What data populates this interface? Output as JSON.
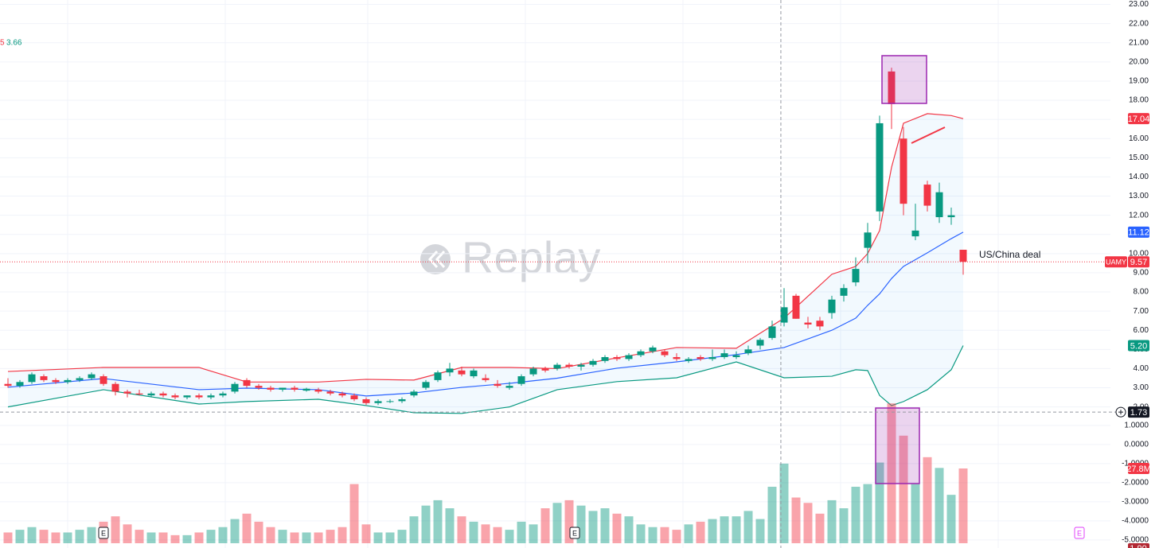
{
  "chart_data": {
    "type": "candlestick",
    "symbol": "UAMY",
    "legend_values": [
      "5",
      "3.66"
    ],
    "watermark": "Replay",
    "annotation": "US/China deal",
    "event_markers": [
      "E",
      "E",
      "E"
    ],
    "bottom_tag": "1.90",
    "up_color": "#089981",
    "down_color": "#f23645",
    "grid": true,
    "open": [
      3.2,
      3.1,
      3.3,
      3.6,
      3.4,
      3.3,
      3.4,
      3.5,
      3.6,
      3.2,
      2.8,
      2.7,
      2.6,
      2.7,
      2.6,
      2.5,
      2.6,
      2.5,
      2.6,
      2.8,
      3.4,
      3.1,
      3.0,
      2.9,
      3.0,
      2.85,
      2.9,
      2.8,
      2.7,
      2.6,
      2.4,
      2.2,
      2.3,
      2.3,
      2.6,
      3.0,
      3.4,
      3.8,
      3.9,
      3.6,
      3.5,
      3.2,
      3.0,
      3.2,
      3.7,
      4.0,
      4.0,
      4.2,
      4.1,
      4.2,
      4.4,
      4.6,
      4.5,
      4.7,
      4.9,
      4.9,
      4.6,
      4.4,
      4.6,
      4.5,
      4.6,
      4.6,
      4.8,
      5.2,
      5.6,
      6.4,
      7.8,
      6.4,
      6.5,
      6.9,
      7.8,
      8.5,
      10.3,
      12.2,
      19.5,
      16.0,
      10.9,
      13.6,
      11.9,
      11.9,
      10.2
    ],
    "high": [
      3.5,
      3.4,
      3.8,
      3.7,
      3.5,
      3.5,
      3.6,
      3.8,
      3.7,
      3.3,
      2.9,
      2.9,
      2.8,
      2.8,
      2.7,
      2.6,
      2.7,
      2.7,
      2.8,
      3.3,
      3.5,
      3.2,
      3.1,
      3.0,
      3.1,
      3.0,
      3.0,
      2.9,
      2.8,
      2.7,
      2.5,
      2.4,
      2.4,
      2.5,
      2.9,
      3.4,
      3.9,
      4.3,
      4.1,
      4.0,
      3.7,
      3.4,
      3.3,
      3.7,
      4.1,
      4.1,
      4.3,
      4.3,
      4.3,
      4.5,
      4.7,
      4.7,
      4.8,
      5.0,
      5.2,
      5.0,
      4.8,
      4.6,
      4.7,
      5.0,
      5.0,
      4.9,
      5.2,
      5.6,
      6.5,
      8.2,
      7.9,
      6.7,
      6.7,
      7.8,
      8.4,
      9.8,
      11.6,
      17.2,
      19.7,
      16.6,
      12.6,
      13.8,
      13.7,
      12.4,
      10.2
    ],
    "low": [
      3.0,
      3.0,
      3.2,
      3.3,
      3.2,
      3.2,
      3.3,
      3.4,
      3.1,
      2.6,
      2.5,
      2.6,
      2.5,
      2.5,
      2.4,
      2.4,
      2.4,
      2.4,
      2.5,
      2.7,
      3.0,
      2.9,
      2.8,
      2.8,
      2.8,
      2.8,
      2.7,
      2.6,
      2.5,
      2.3,
      2.1,
      2.1,
      2.2,
      2.2,
      2.5,
      2.9,
      3.3,
      3.6,
      3.6,
      3.5,
      3.3,
      3.0,
      2.9,
      3.1,
      3.6,
      3.8,
      3.9,
      4.0,
      3.9,
      4.1,
      4.3,
      4.4,
      4.4,
      4.6,
      4.8,
      4.6,
      4.4,
      4.3,
      4.4,
      4.4,
      4.5,
      4.5,
      4.7,
      5.0,
      5.5,
      6.2,
      6.6,
      6.1,
      6.0,
      6.6,
      7.5,
      8.3,
      9.5,
      11.7,
      16.5,
      12.0,
      10.7,
      12.2,
      11.6,
      11.5,
      8.9
    ],
    "close": [
      3.1,
      3.3,
      3.7,
      3.4,
      3.3,
      3.4,
      3.5,
      3.7,
      3.2,
      2.8,
      2.7,
      2.65,
      2.7,
      2.6,
      2.5,
      2.6,
      2.5,
      2.6,
      2.7,
      3.2,
      3.1,
      3.0,
      2.9,
      3.0,
      2.9,
      2.95,
      2.8,
      2.7,
      2.6,
      2.4,
      2.2,
      2.3,
      2.3,
      2.4,
      2.8,
      3.3,
      3.8,
      4.0,
      3.7,
      3.9,
      3.4,
      3.1,
      3.1,
      3.6,
      4.0,
      3.9,
      4.2,
      4.1,
      4.2,
      4.4,
      4.6,
      4.5,
      4.7,
      4.9,
      5.1,
      4.7,
      4.5,
      4.5,
      4.5,
      4.6,
      4.8,
      4.7,
      5.0,
      5.5,
      6.2,
      7.2,
      6.6,
      6.3,
      6.2,
      7.6,
      8.2,
      9.2,
      11.1,
      16.8,
      17.8,
      12.6,
      11.2,
      12.5,
      13.2,
      12.0,
      9.57
    ],
    "volume": [
      4000000,
      5000000,
      6000000,
      5000000,
      4000000,
      4000000,
      5000000,
      6000000,
      8000000,
      10000000,
      7000000,
      5000000,
      4000000,
      4000000,
      3000000,
      3000000,
      4000000,
      5000000,
      6000000,
      9000000,
      11000000,
      8000000,
      6000000,
      5000000,
      4000000,
      4000000,
      4000000,
      5000000,
      6000000,
      22000000,
      7000000,
      4000000,
      4000000,
      5000000,
      10000000,
      14000000,
      16000000,
      13000000,
      10000000,
      8000000,
      7000000,
      6000000,
      5000000,
      8000000,
      7000000,
      13000000,
      15000000,
      16000000,
      14000000,
      12000000,
      13000000,
      11000000,
      10000000,
      7000000,
      6000000,
      6000000,
      5000000,
      7000000,
      8000000,
      9000000,
      10000000,
      10000000,
      12000000,
      9000000,
      21000000,
      29600000,
      17000000,
      15000000,
      11000000,
      16000000,
      13000000,
      21000000,
      22000000,
      30000000,
      52000000,
      40000000,
      22000000,
      32000000,
      28000000,
      18000000,
      27800000
    ],
    "volume_value_label": "27.8M",
    "volume_lim": [
      0,
      202000000
    ],
    "bands": {
      "x": [
        0,
        8,
        16,
        20,
        26,
        30,
        34,
        38,
        42,
        46,
        51,
        56,
        61,
        65,
        69,
        71,
        72,
        73,
        74,
        75,
        77,
        79,
        80
      ],
      "upper": [
        3.85,
        4.06,
        4.06,
        3.3,
        3.3,
        3.44,
        3.4,
        4.06,
        4.06,
        4.0,
        4.56,
        5.1,
        5.06,
        6.63,
        8.92,
        9.33,
        10.0,
        11.2,
        14.5,
        16.8,
        17.3,
        17.2,
        17.04
      ],
      "middle": [
        3.03,
        3.48,
        2.9,
        2.98,
        2.9,
        2.57,
        2.73,
        3.02,
        3.23,
        3.5,
        4.02,
        4.35,
        4.73,
        5.1,
        6.0,
        6.63,
        7.3,
        7.9,
        8.7,
        9.33,
        10.04,
        10.78,
        11.12
      ],
      "lower": [
        2.0,
        2.9,
        2.15,
        2.28,
        2.4,
        2.07,
        1.7,
        1.66,
        2.0,
        2.9,
        3.32,
        3.52,
        4.35,
        3.52,
        3.6,
        3.94,
        3.9,
        2.6,
        2.07,
        2.28,
        2.9,
        3.94,
        5.2
      ],
      "lower_value_label": "5.20",
      "upper_color": "#f23645",
      "middle_color": "#2962ff",
      "lower_color": "#089981"
    },
    "crosshair": {
      "x": 64.73,
      "y": 1.73
    },
    "ylim": [
      -5.36,
      23.23
    ],
    "yticks": [
      {
        "value": 2,
        "label": "2.00"
      },
      {
        "value": 3,
        "label": "3.00"
      },
      {
        "value": 4,
        "label": "4.00"
      },
      {
        "value": 5,
        "label": "5.00"
      },
      {
        "value": 6,
        "label": "6.00"
      },
      {
        "value": 7,
        "label": "7.00"
      },
      {
        "value": 8,
        "label": "8.00"
      },
      {
        "value": 9,
        "label": "9.00"
      },
      {
        "value": 10,
        "label": "10.00"
      },
      {
        "value": 11,
        "label": "11.00"
      },
      {
        "value": 12,
        "label": "12.00"
      },
      {
        "value": 13,
        "label": "13.00"
      },
      {
        "value": 14,
        "label": "14.00"
      },
      {
        "value": 15,
        "label": "15.00"
      },
      {
        "value": 16,
        "label": "16.00"
      },
      {
        "value": 17,
        "label": "17.00"
      },
      {
        "value": 18,
        "label": "18.00"
      },
      {
        "value": 19,
        "label": "19.00"
      },
      {
        "value": 20,
        "label": "20.00"
      },
      {
        "value": 21,
        "label": "21.00"
      },
      {
        "value": 22,
        "label": "22.00"
      },
      {
        "value": 23,
        "label": "23.00"
      }
    ],
    "y2lim": [
      -5.42,
      23.29
    ],
    "y2ticks": [
      {
        "value": 1,
        "label": "1.0000"
      },
      {
        "value": 0,
        "label": "0.0000"
      },
      {
        "value": -1,
        "label": "-1.0000"
      },
      {
        "value": -2,
        "label": "-2.0000"
      },
      {
        "value": -3,
        "label": "-3.0000"
      },
      {
        "value": -4,
        "label": "-4.0000"
      },
      {
        "value": -5,
        "label": "-5.0000"
      }
    ]
  }
}
